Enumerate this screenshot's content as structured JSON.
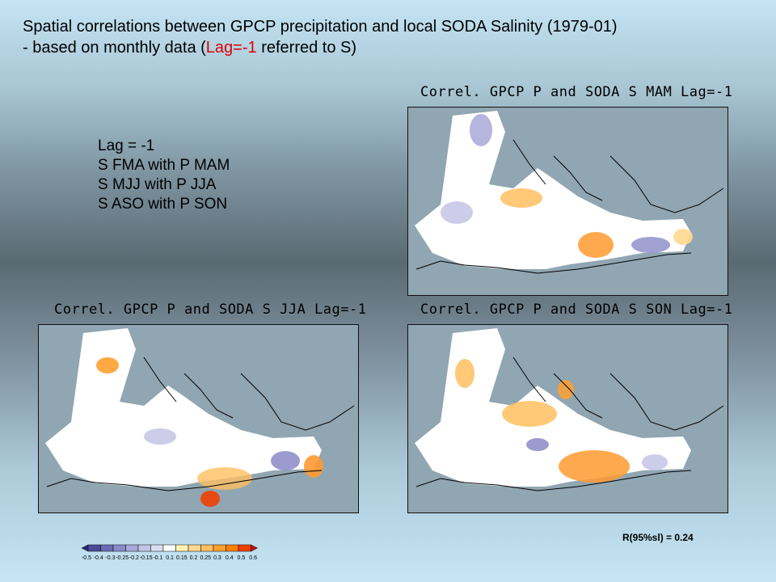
{
  "title": {
    "line1": "Spatial correlations between GPCP precipitation and local SODA Salinity (1979-01)",
    "line2_pre": "- based on monthly data (",
    "line2_red": "Lag=-1",
    "line2_post": " referred to S)"
  },
  "lag_list": [
    "Lag = -1",
    "S FMA with P MAM",
    "S MJJ with P JJA",
    "S ASO with P SON"
  ],
  "panels": {
    "mam": {
      "title": "Correl. GPCP P and SODA S MAM Lag=-1"
    },
    "jja": {
      "title": "Correl. GPCP P and SODA S JJA Lag=-1"
    },
    "son": {
      "title": "Correl. GPCP P and SODA S SON Lag=-1"
    }
  },
  "colorbar": {
    "labels": [
      "-0.5",
      "-0.4",
      "-0.3",
      "-0.25",
      "-0.2",
      "-0.15",
      "-0.1",
      "0.1",
      "0.15",
      "0.2",
      "0.25",
      "0.3",
      "0.4",
      "0.5",
      "0.6"
    ],
    "colors": [
      "#2c2c7c",
      "#4a4a98",
      "#6a6ab4",
      "#8a8ac8",
      "#a8a8d8",
      "#c4c4e6",
      "#dcdcf2",
      "#ffffff",
      "#fff2b0",
      "#ffd890",
      "#ffbf60",
      "#ffa030",
      "#ff7f00",
      "#f04000",
      "#c81000"
    ]
  },
  "note": "R(95%sl) = 0.24"
}
